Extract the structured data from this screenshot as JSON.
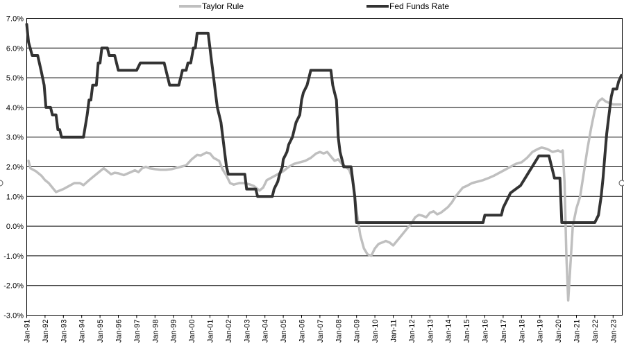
{
  "chart_data": {
    "type": "line",
    "y_tick_labels": [
      "-3.0%",
      "-2.0%",
      "-1.0%",
      "0.0%",
      "1.0%",
      "2.0%",
      "3.0%",
      "4.0%",
      "5.0%",
      "6.0%",
      "7.0%"
    ],
    "x_tick_labels": [
      "Jan-91",
      "Jan-92",
      "Jan-93",
      "Jan-94",
      "Jan-95",
      "Jan-96",
      "Jan-97",
      "Jan-98",
      "Jan-99",
      "Jan-00",
      "Jan-01",
      "Jan-02",
      "Jan-03",
      "Jan-04",
      "Jan-05",
      "Jan-06",
      "Jan-07",
      "Jan-08",
      "Jan-09",
      "Jan-10",
      "Jan-11",
      "Jan-12",
      "Jan-13",
      "Jan-14",
      "Jan-15",
      "Jan-16",
      "Jan-17",
      "Jan-18",
      "Jan-19",
      "Jan-20",
      "Jan-21",
      "Jan-22",
      "Jan-23"
    ],
    "ylim": [
      -3.0,
      7.0
    ],
    "xlim": [
      1991.0,
      2023.5
    ],
    "grid": "horizontal",
    "legend_position": "top",
    "series": [
      {
        "name": "Taylor Rule",
        "color": "#bfbfbf",
        "points": [
          [
            1991.1,
            2.2
          ],
          [
            1991.2,
            1.95
          ],
          [
            1991.5,
            1.85
          ],
          [
            1991.8,
            1.7
          ],
          [
            1992.0,
            1.55
          ],
          [
            1992.2,
            1.45
          ],
          [
            1992.4,
            1.3
          ],
          [
            1992.6,
            1.15
          ],
          [
            1992.8,
            1.2
          ],
          [
            1993.0,
            1.25
          ],
          [
            1993.3,
            1.35
          ],
          [
            1993.6,
            1.45
          ],
          [
            1993.9,
            1.45
          ],
          [
            1994.1,
            1.38
          ],
          [
            1994.4,
            1.55
          ],
          [
            1994.7,
            1.7
          ],
          [
            1995.0,
            1.85
          ],
          [
            1995.2,
            1.95
          ],
          [
            1995.4,
            1.85
          ],
          [
            1995.6,
            1.75
          ],
          [
            1995.8,
            1.8
          ],
          [
            1996.0,
            1.78
          ],
          [
            1996.3,
            1.72
          ],
          [
            1996.6,
            1.8
          ],
          [
            1996.9,
            1.88
          ],
          [
            1997.1,
            1.82
          ],
          [
            1997.3,
            1.95
          ],
          [
            1997.5,
            2.0
          ],
          [
            1997.7,
            1.95
          ],
          [
            1998.0,
            1.92
          ],
          [
            1998.3,
            1.9
          ],
          [
            1998.6,
            1.9
          ],
          [
            1998.9,
            1.92
          ],
          [
            1999.1,
            1.95
          ],
          [
            1999.4,
            2.0
          ],
          [
            1999.7,
            2.05
          ],
          [
            2000.0,
            2.25
          ],
          [
            2000.3,
            2.4
          ],
          [
            2000.5,
            2.38
          ],
          [
            2000.8,
            2.48
          ],
          [
            2001.0,
            2.45
          ],
          [
            2001.2,
            2.3
          ],
          [
            2001.5,
            2.2
          ],
          [
            2001.7,
            1.9
          ],
          [
            2001.9,
            1.7
          ],
          [
            2002.1,
            1.45
          ],
          [
            2002.3,
            1.4
          ],
          [
            2002.6,
            1.45
          ],
          [
            2002.9,
            1.45
          ],
          [
            2003.2,
            1.4
          ],
          [
            2003.4,
            1.35
          ],
          [
            2003.7,
            1.2
          ],
          [
            2003.9,
            1.3
          ],
          [
            2004.1,
            1.55
          ],
          [
            2004.4,
            1.65
          ],
          [
            2004.7,
            1.75
          ],
          [
            2005.0,
            1.85
          ],
          [
            2005.3,
            2.0
          ],
          [
            2005.6,
            2.1
          ],
          [
            2005.9,
            2.15
          ],
          [
            2006.2,
            2.2
          ],
          [
            2006.5,
            2.3
          ],
          [
            2006.8,
            2.45
          ],
          [
            2007.0,
            2.5
          ],
          [
            2007.2,
            2.45
          ],
          [
            2007.4,
            2.5
          ],
          [
            2007.6,
            2.35
          ],
          [
            2007.8,
            2.2
          ],
          [
            2008.0,
            2.25
          ],
          [
            2008.2,
            2.1
          ],
          [
            2008.4,
            2.0
          ],
          [
            2008.6,
            1.9
          ],
          [
            2008.8,
            1.55
          ],
          [
            2009.0,
            0.5
          ],
          [
            2009.2,
            -0.3
          ],
          [
            2009.4,
            -0.75
          ],
          [
            2009.6,
            -0.95
          ],
          [
            2009.8,
            -1.0
          ],
          [
            2010.0,
            -0.75
          ],
          [
            2010.2,
            -0.6
          ],
          [
            2010.4,
            -0.55
          ],
          [
            2010.6,
            -0.5
          ],
          [
            2010.8,
            -0.55
          ],
          [
            2011.0,
            -0.65
          ],
          [
            2011.2,
            -0.5
          ],
          [
            2011.4,
            -0.35
          ],
          [
            2011.6,
            -0.2
          ],
          [
            2011.8,
            -0.05
          ],
          [
            2012.0,
            0.1
          ],
          [
            2012.2,
            0.3
          ],
          [
            2012.4,
            0.38
          ],
          [
            2012.6,
            0.35
          ],
          [
            2012.8,
            0.3
          ],
          [
            2013.0,
            0.45
          ],
          [
            2013.2,
            0.5
          ],
          [
            2013.4,
            0.4
          ],
          [
            2013.6,
            0.45
          ],
          [
            2013.8,
            0.55
          ],
          [
            2014.0,
            0.65
          ],
          [
            2014.2,
            0.8
          ],
          [
            2014.4,
            1.0
          ],
          [
            2014.6,
            1.15
          ],
          [
            2014.8,
            1.3
          ],
          [
            2015.0,
            1.35
          ],
          [
            2015.3,
            1.45
          ],
          [
            2015.6,
            1.5
          ],
          [
            2015.9,
            1.55
          ],
          [
            2016.2,
            1.62
          ],
          [
            2016.5,
            1.7
          ],
          [
            2016.8,
            1.8
          ],
          [
            2017.1,
            1.9
          ],
          [
            2017.4,
            2.0
          ],
          [
            2017.7,
            2.1
          ],
          [
            2018.0,
            2.15
          ],
          [
            2018.3,
            2.3
          ],
          [
            2018.6,
            2.5
          ],
          [
            2018.9,
            2.6
          ],
          [
            2019.1,
            2.65
          ],
          [
            2019.4,
            2.6
          ],
          [
            2019.7,
            2.5
          ],
          [
            2020.0,
            2.55
          ],
          [
            2020.15,
            2.5
          ],
          [
            2020.25,
            2.55
          ],
          [
            2020.35,
            1.5
          ],
          [
            2020.45,
            -1.0
          ],
          [
            2020.55,
            -2.5
          ],
          [
            2020.65,
            -1.5
          ],
          [
            2020.8,
            0.0
          ],
          [
            2021.0,
            0.6
          ],
          [
            2021.2,
            1.0
          ],
          [
            2021.4,
            1.8
          ],
          [
            2021.6,
            2.6
          ],
          [
            2021.8,
            3.3
          ],
          [
            2022.0,
            3.9
          ],
          [
            2022.2,
            4.2
          ],
          [
            2022.4,
            4.3
          ],
          [
            2022.6,
            4.2
          ],
          [
            2022.8,
            4.15
          ],
          [
            2023.0,
            4.1
          ],
          [
            2023.2,
            4.1
          ],
          [
            2023.4,
            4.1
          ]
        ]
      },
      {
        "name": "Fed Funds Rate",
        "color": "#333333",
        "points": [
          [
            1991.0,
            6.8
          ],
          [
            1991.1,
            6.2
          ],
          [
            1991.3,
            5.75
          ],
          [
            1991.6,
            5.75
          ],
          [
            1991.8,
            5.2
          ],
          [
            1991.95,
            4.75
          ],
          [
            1992.05,
            4.0
          ],
          [
            1992.3,
            4.0
          ],
          [
            1992.4,
            3.75
          ],
          [
            1992.6,
            3.75
          ],
          [
            1992.7,
            3.25
          ],
          [
            1992.8,
            3.25
          ],
          [
            1992.9,
            3.0
          ],
          [
            1993.5,
            3.0
          ],
          [
            1994.0,
            3.0
          ],
          [
            1994.1,
            3.0
          ],
          [
            1994.3,
            3.75
          ],
          [
            1994.4,
            4.25
          ],
          [
            1994.5,
            4.25
          ],
          [
            1994.6,
            4.75
          ],
          [
            1994.8,
            4.75
          ],
          [
            1994.9,
            5.5
          ],
          [
            1995.0,
            5.5
          ],
          [
            1995.1,
            6.0
          ],
          [
            1995.4,
            6.0
          ],
          [
            1995.5,
            5.75
          ],
          [
            1995.8,
            5.75
          ],
          [
            1996.0,
            5.25
          ],
          [
            1996.5,
            5.25
          ],
          [
            1997.0,
            5.25
          ],
          [
            1997.2,
            5.5
          ],
          [
            1997.6,
            5.5
          ],
          [
            1998.0,
            5.5
          ],
          [
            1998.5,
            5.5
          ],
          [
            1998.7,
            5.0
          ],
          [
            1998.8,
            4.75
          ],
          [
            1999.0,
            4.75
          ],
          [
            1999.3,
            4.75
          ],
          [
            1999.4,
            5.0
          ],
          [
            1999.5,
            5.25
          ],
          [
            1999.7,
            5.25
          ],
          [
            1999.8,
            5.5
          ],
          [
            1999.95,
            5.5
          ],
          [
            2000.1,
            6.0
          ],
          [
            2000.2,
            6.0
          ],
          [
            2000.3,
            6.5
          ],
          [
            2000.9,
            6.5
          ],
          [
            2001.0,
            6.0
          ],
          [
            2001.1,
            5.5
          ],
          [
            2001.2,
            5.0
          ],
          [
            2001.3,
            4.5
          ],
          [
            2001.4,
            4.0
          ],
          [
            2001.5,
            3.75
          ],
          [
            2001.6,
            3.5
          ],
          [
            2001.7,
            3.0
          ],
          [
            2001.8,
            2.5
          ],
          [
            2001.9,
            2.0
          ],
          [
            2002.0,
            1.75
          ],
          [
            2002.5,
            1.75
          ],
          [
            2002.9,
            1.75
          ],
          [
            2003.0,
            1.25
          ],
          [
            2003.5,
            1.25
          ],
          [
            2003.6,
            1.0
          ],
          [
            2004.0,
            1.0
          ],
          [
            2004.4,
            1.0
          ],
          [
            2004.5,
            1.25
          ],
          [
            2004.7,
            1.5
          ],
          [
            2004.8,
            1.75
          ],
          [
            2004.95,
            2.0
          ],
          [
            2005.0,
            2.25
          ],
          [
            2005.2,
            2.5
          ],
          [
            2005.3,
            2.75
          ],
          [
            2005.5,
            3.0
          ],
          [
            2005.6,
            3.25
          ],
          [
            2005.7,
            3.5
          ],
          [
            2005.9,
            3.75
          ],
          [
            2006.0,
            4.25
          ],
          [
            2006.1,
            4.5
          ],
          [
            2006.3,
            4.75
          ],
          [
            2006.4,
            5.0
          ],
          [
            2006.5,
            5.25
          ],
          [
            2007.0,
            5.25
          ],
          [
            2007.5,
            5.25
          ],
          [
            2007.6,
            5.25
          ],
          [
            2007.7,
            4.75
          ],
          [
            2007.8,
            4.5
          ],
          [
            2007.9,
            4.25
          ],
          [
            2008.0,
            3.0
          ],
          [
            2008.1,
            2.5
          ],
          [
            2008.2,
            2.25
          ],
          [
            2008.3,
            2.0
          ],
          [
            2008.7,
            2.0
          ],
          [
            2008.8,
            1.5
          ],
          [
            2008.9,
            1.0
          ],
          [
            2009.0,
            0.12
          ],
          [
            2010.0,
            0.12
          ],
          [
            2011.0,
            0.12
          ],
          [
            2012.0,
            0.12
          ],
          [
            2013.0,
            0.12
          ],
          [
            2014.0,
            0.12
          ],
          [
            2015.0,
            0.12
          ],
          [
            2015.9,
            0.12
          ],
          [
            2016.0,
            0.37
          ],
          [
            2016.9,
            0.37
          ],
          [
            2017.0,
            0.62
          ],
          [
            2017.2,
            0.87
          ],
          [
            2017.4,
            1.12
          ],
          [
            2017.95,
            1.37
          ],
          [
            2018.2,
            1.62
          ],
          [
            2018.45,
            1.87
          ],
          [
            2018.7,
            2.12
          ],
          [
            2018.95,
            2.37
          ],
          [
            2019.5,
            2.37
          ],
          [
            2019.6,
            2.12
          ],
          [
            2019.7,
            1.87
          ],
          [
            2019.8,
            1.62
          ],
          [
            2020.1,
            1.62
          ],
          [
            2020.2,
            0.12
          ],
          [
            2021.0,
            0.12
          ],
          [
            2021.5,
            0.12
          ],
          [
            2022.0,
            0.12
          ],
          [
            2022.2,
            0.37
          ],
          [
            2022.35,
            1.0
          ],
          [
            2022.45,
            1.62
          ],
          [
            2022.55,
            2.37
          ],
          [
            2022.65,
            3.12
          ],
          [
            2022.8,
            3.87
          ],
          [
            2022.9,
            4.37
          ],
          [
            2023.0,
            4.62
          ],
          [
            2023.2,
            4.62
          ],
          [
            2023.3,
            4.87
          ],
          [
            2023.45,
            5.08
          ]
        ]
      }
    ]
  }
}
